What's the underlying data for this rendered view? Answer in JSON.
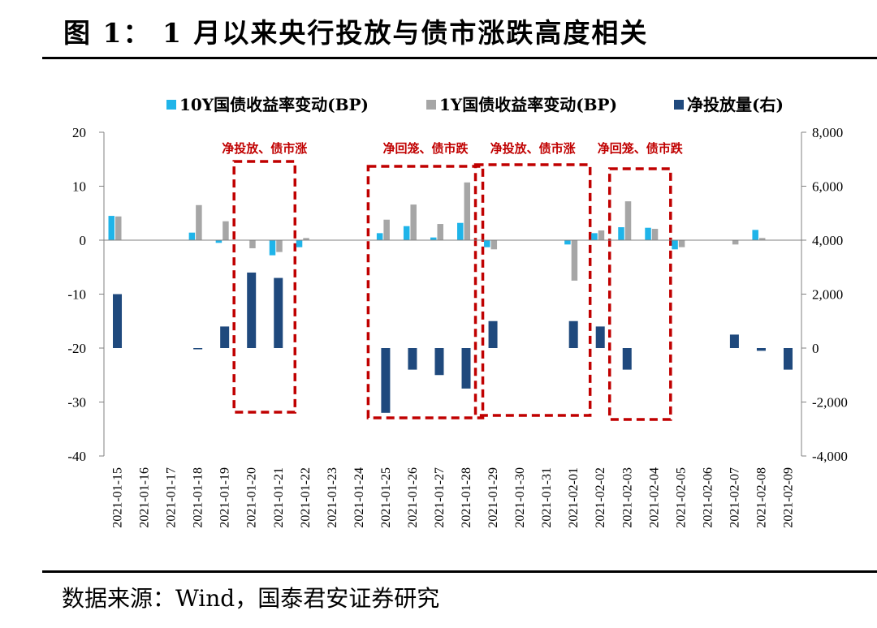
{
  "figure": {
    "title": "图 1：  1 月以来央行投放与债市涨跌高度相关",
    "source": "数据来源：Wind，国泰君安证券研究"
  },
  "chart_data": {
    "type": "bar",
    "categories": [
      "2021-01-15",
      "2021-01-16",
      "2021-01-17",
      "2021-01-18",
      "2021-01-19",
      "2021-01-20",
      "2021-01-21",
      "2021-01-22",
      "2021-01-23",
      "2021-01-24",
      "2021-01-25",
      "2021-01-26",
      "2021-01-27",
      "2021-01-28",
      "2021-01-29",
      "2021-01-30",
      "2021-01-31",
      "2021-02-01",
      "2021-02-02",
      "2021-02-03",
      "2021-02-04",
      "2021-02-05",
      "2021-02-06",
      "2021-02-07",
      "2021-02-08",
      "2021-02-09"
    ],
    "series": [
      {
        "name": "10Y国债收益率变动(BP)",
        "axis": "left",
        "color": "#1fb4e9",
        "values": [
          4.5,
          0,
          0,
          1.4,
          -0.5,
          0,
          -2.8,
          -1.3,
          0,
          0,
          1.3,
          2.6,
          0.5,
          3.2,
          -1.3,
          0,
          0,
          -0.8,
          1.3,
          2.4,
          2.3,
          -1.7,
          0,
          0,
          1.9,
          0
        ]
      },
      {
        "name": "1Y国债收益率变动(BP)",
        "axis": "left",
        "color": "#a6a6a6",
        "values": [
          4.4,
          0,
          0,
          6.5,
          3.5,
          -1.5,
          -2.2,
          0.4,
          0,
          0,
          3.8,
          6.6,
          3.0,
          10.7,
          -1.7,
          0,
          0,
          -7.5,
          1.8,
          7.2,
          2.1,
          -1.3,
          0,
          -0.8,
          0.4,
          0
        ]
      },
      {
        "name": "净投放量(右)",
        "axis": "right",
        "color": "#1f497d",
        "values": [
          2000,
          0,
          0,
          -30,
          800,
          2800,
          2600,
          0,
          0,
          0,
          -2400,
          -800,
          -1000,
          -1500,
          1000,
          0,
          0,
          1000,
          800,
          -800,
          0,
          0,
          0,
          500,
          -100,
          -800
        ]
      }
    ],
    "y_left": {
      "min": -40,
      "max": 20,
      "ticks": [
        "20",
        "10",
        "0",
        "-10",
        "-20",
        "-30",
        "-40"
      ]
    },
    "y_right": {
      "min": -4000,
      "max": 8000,
      "ticks": [
        "8,000",
        "6,000",
        "4,000",
        "2,000",
        "0",
        "-2,000",
        "-4,000"
      ]
    },
    "legend_position": "top",
    "annotations": [
      {
        "text": "净投放、债市涨",
        "from": "2021-01-20",
        "to": "2021-01-21"
      },
      {
        "text": "净回笼、债市跌",
        "from": "2021-01-25",
        "to": "2021-01-28"
      },
      {
        "text": "净投放、债市涨",
        "from": "2021-01-29",
        "to": "2021-02-01"
      },
      {
        "text": "净回笼、债市跌",
        "from": "2021-02-03",
        "to": "2021-02-04"
      }
    ],
    "annotation_color": "#c00000"
  }
}
